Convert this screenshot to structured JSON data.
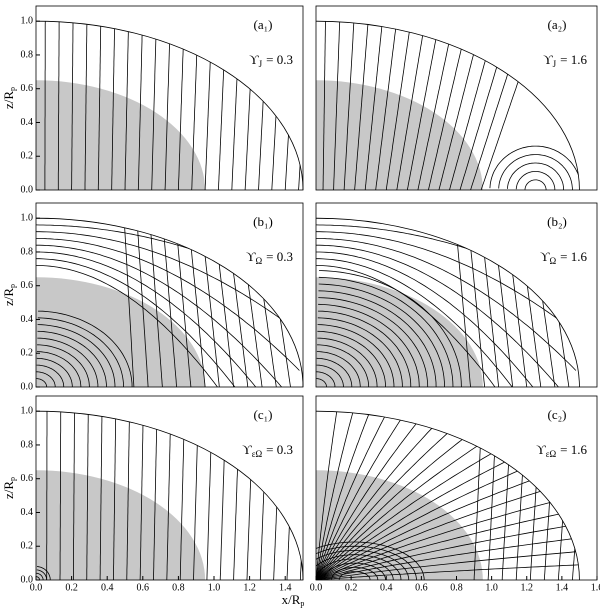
{
  "chart_data": [
    {
      "type": "field-lines",
      "panel_label": "(a₁)",
      "annotation": {
        "symbol": "ϒ",
        "sub": "J",
        "text": "= 0.3"
      },
      "ylabel": {
        "text": "z/R",
        "sub": "p"
      },
      "xlim": [
        0,
        1.5
      ],
      "ylim": [
        0,
        1.09
      ],
      "yticks": [
        {
          "value": 0,
          "label": "0.0"
        },
        {
          "value": 0.2,
          "label": "0.2"
        },
        {
          "value": 0.4,
          "label": "0.4"
        },
        {
          "value": 0.6,
          "label": "0.6"
        },
        {
          "value": 0.8,
          "label": "0.8"
        },
        {
          "value": 1,
          "label": "1.0"
        }
      ]
    },
    {
      "type": "field-lines",
      "panel_label": "(a₂)",
      "annotation": {
        "symbol": "ϒ",
        "sub": "J",
        "text": "= 1.6"
      },
      "xlim": [
        0,
        1.6
      ],
      "ylim": [
        0,
        1.09
      ]
    },
    {
      "type": "field-lines",
      "panel_label": "(b₁)",
      "annotation": {
        "symbol": "ϒ",
        "sub": "Ω",
        "text": "= 0.3"
      },
      "ylabel": {
        "text": "z/R",
        "sub": "p"
      },
      "xlim": [
        0,
        1.5
      ],
      "ylim": [
        0,
        1.09
      ],
      "yticks": [
        {
          "value": 0,
          "label": "0.0"
        },
        {
          "value": 0.2,
          "label": "0.2"
        },
        {
          "value": 0.4,
          "label": "0.4"
        },
        {
          "value": 0.6,
          "label": "0.6"
        },
        {
          "value": 0.8,
          "label": "0.8"
        },
        {
          "value": 1,
          "label": "1.0"
        }
      ]
    },
    {
      "type": "field-lines",
      "panel_label": "(b₂)",
      "annotation": {
        "symbol": "ϒ",
        "sub": "Ω",
        "text": "= 1.6"
      },
      "xlim": [
        0,
        1.6
      ],
      "ylim": [
        0,
        1.09
      ]
    },
    {
      "type": "field-lines",
      "panel_label": "(c₁)",
      "annotation": {
        "symbol": "ϒ",
        "sub": "εΩ",
        "text": "= 0.3"
      },
      "ylabel": {
        "text": "z/R",
        "sub": "p"
      },
      "xlabel": {
        "text": "x/R",
        "sub": "p"
      },
      "xlim": [
        0,
        1.5
      ],
      "ylim": [
        0,
        1.09
      ],
      "yticks": [
        {
          "value": 0,
          "label": "0.0"
        },
        {
          "value": 0.2,
          "label": "0.2"
        },
        {
          "value": 0.4,
          "label": "0.4"
        },
        {
          "value": 0.6,
          "label": "0.6"
        },
        {
          "value": 0.8,
          "label": "0.8"
        },
        {
          "value": 1,
          "label": "1.0"
        }
      ],
      "xticks": [
        {
          "value": 0,
          "label": "0.0"
        },
        {
          "value": 0.2,
          "label": "0.2"
        },
        {
          "value": 0.4,
          "label": "0.4"
        },
        {
          "value": 0.6,
          "label": "0.6"
        },
        {
          "value": 0.8,
          "label": "0.8"
        },
        {
          "value": 1,
          "label": "1.0"
        },
        {
          "value": 1.2,
          "label": "1.2"
        },
        {
          "value": 1.4,
          "label": "1.4"
        }
      ]
    },
    {
      "type": "field-lines",
      "panel_label": "(c₂)",
      "annotation": {
        "symbol": "ϒ",
        "sub": "εΩ",
        "text": "= 1.6"
      },
      "xlim": [
        0,
        1.6
      ],
      "ylim": [
        0,
        1.09
      ],
      "xticks": [
        {
          "value": 0,
          "label": "0.0"
        },
        {
          "value": 0.2,
          "label": "0.2"
        },
        {
          "value": 0.4,
          "label": "0.4"
        },
        {
          "value": 0.6,
          "label": "0.6"
        },
        {
          "value": 0.8,
          "label": "0.8"
        },
        {
          "value": 1,
          "label": "1.0"
        },
        {
          "value": 1.2,
          "label": "1.2"
        },
        {
          "value": 1.4,
          "label": "1.4"
        },
        {
          "value": 1.6,
          "label": "1.6"
        }
      ]
    }
  ]
}
